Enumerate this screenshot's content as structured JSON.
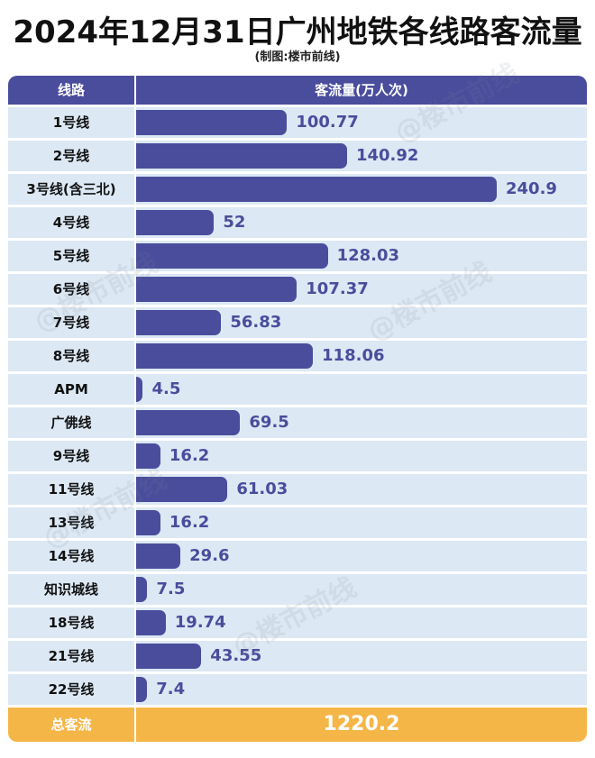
{
  "header": {
    "title": "2024年12月31日广州地铁各线路客流量",
    "subtitle": "(制图:楼市前线)"
  },
  "table_header": {
    "col_line": "线路",
    "col_value": "客流量(万人次)"
  },
  "watermark": "@楼市前线",
  "colors": {
    "bar": "#4a4d9c",
    "row_bg": "#dce8f4",
    "total_bg": "#f5b648"
  },
  "chart_data": {
    "type": "bar",
    "orientation": "horizontal",
    "title": "2024年12月31日广州地铁各线路客流量",
    "subtitle": "(制图:楼市前线)",
    "xlabel": "客流量(万人次)",
    "ylabel": "线路",
    "xlim": [
      0,
      240.9
    ],
    "grid": false,
    "categories": [
      "1号线",
      "2号线",
      "3号线(含三北)",
      "4号线",
      "5号线",
      "6号线",
      "7号线",
      "8号线",
      "APM",
      "广佛线",
      "9号线",
      "11号线",
      "13号线",
      "14号线",
      "知识城线",
      "18号线",
      "21号线",
      "22号线"
    ],
    "values": [
      100.77,
      140.92,
      240.9,
      52,
      128.03,
      107.37,
      56.83,
      118.06,
      4.5,
      69.5,
      16.2,
      61.03,
      16.2,
      29.6,
      7.5,
      19.74,
      43.55,
      7.4
    ],
    "value_labels": [
      "100.77",
      "140.92",
      "240.9",
      "52",
      "128.03",
      "107.37",
      "56.83",
      "118.06",
      "4.5",
      "69.5",
      "16.2",
      "61.03",
      "16.2",
      "29.6",
      "7.5",
      "19.74",
      "43.55",
      "7.4"
    ],
    "total_label": "总客流",
    "total_value": "1220.2"
  }
}
